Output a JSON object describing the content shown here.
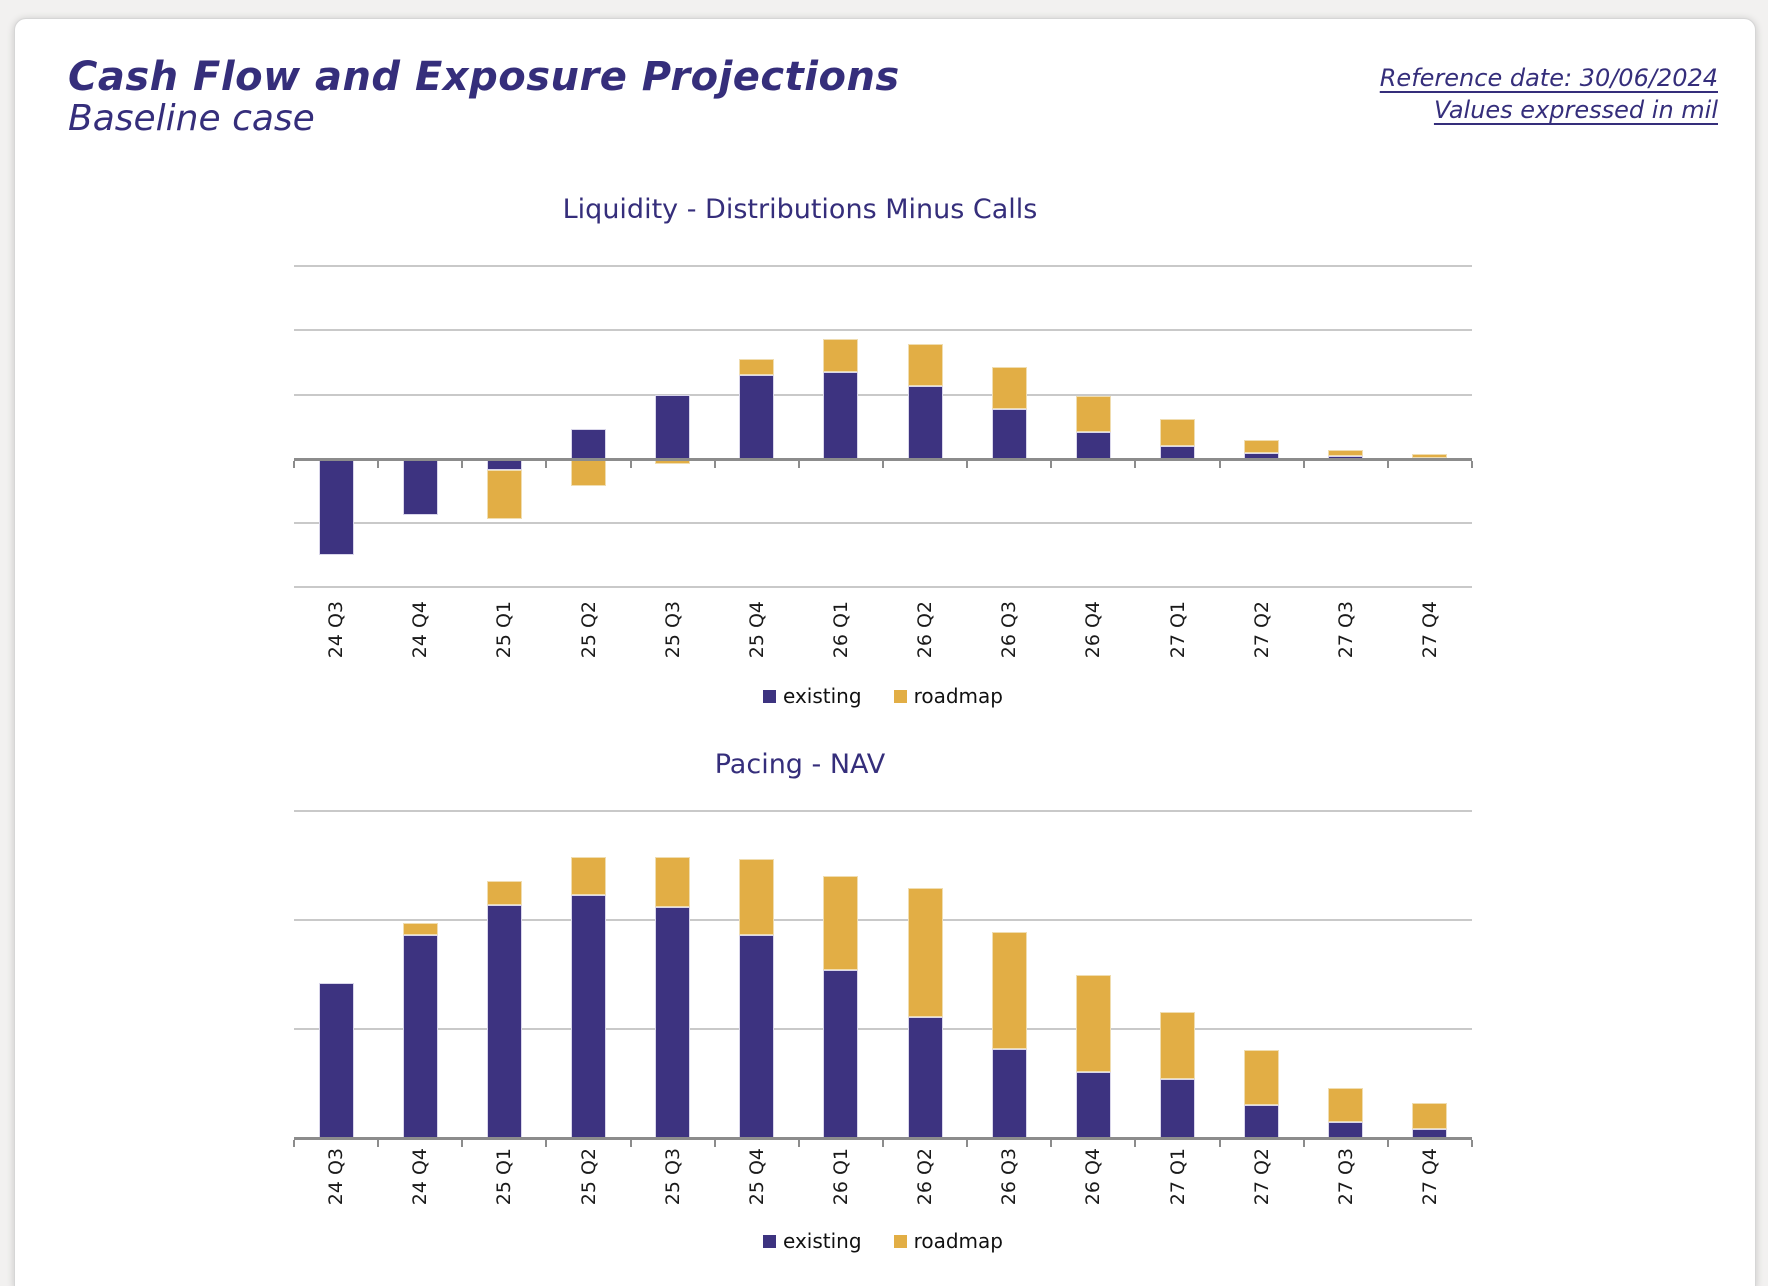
{
  "page": {
    "title": "Cash Flow and Exposure Projections",
    "subtitle": "Baseline case",
    "header_right": {
      "reference_date": "Reference date: 30/06/2024",
      "values_note": "Values expressed in mil"
    }
  },
  "legend": {
    "existing": "existing",
    "roadmap": "roadmap"
  },
  "colors": {
    "accent_text": "#352e7b",
    "existing": "#3d3380",
    "roadmap": "#e2ae45",
    "gridline": "#c9c9c9",
    "axis": "#8c8c8c",
    "label_text": "#1a1a1a"
  },
  "chart_data": [
    {
      "type": "bar",
      "stacked": true,
      "title": "Liquidity - Distributions Minus Calls",
      "categories": [
        "24 Q3",
        "24 Q4",
        "25 Q1",
        "25 Q2",
        "25 Q3",
        "25 Q4",
        "26 Q1",
        "26 Q2",
        "26 Q3",
        "26 Q4",
        "27 Q1",
        "27 Q2",
        "27 Q3",
        "27 Q4"
      ],
      "series": [
        {
          "name": "existing",
          "values": [
            -150,
            -87,
            -18,
            47,
            100,
            131,
            135,
            114,
            77,
            42,
            20,
            9,
            5,
            2
          ]
        },
        {
          "name": "roadmap",
          "values": [
            0,
            0,
            -75,
            -43,
            -8,
            25,
            52,
            64,
            66,
            56,
            42,
            20,
            8,
            5
          ]
        }
      ],
      "xlabel": "",
      "ylabel": "",
      "ylim": [
        -200,
        300
      ],
      "grid_step": 100,
      "y_axis_labels_shown": false,
      "values_unit": "relative grid units (1 gridline interval = 100)",
      "legend_position": "bottom-center"
    },
    {
      "type": "bar",
      "stacked": true,
      "title": "Pacing - NAV",
      "categories": [
        "24 Q3",
        "24 Q4",
        "25 Q1",
        "25 Q2",
        "25 Q3",
        "25 Q4",
        "26 Q1",
        "26 Q2",
        "26 Q3",
        "26 Q4",
        "27 Q1",
        "27 Q2",
        "27 Q3",
        "27 Q4"
      ],
      "series": [
        {
          "name": "existing",
          "values": [
            142,
            186,
            214,
            223,
            212,
            186,
            154,
            111,
            82,
            61,
            54,
            30,
            15,
            8
          ]
        },
        {
          "name": "roadmap",
          "values": [
            0,
            11,
            22,
            35,
            46,
            70,
            86,
            118,
            107,
            89,
            62,
            51,
            31,
            24
          ]
        }
      ],
      "xlabel": "",
      "ylabel": "",
      "ylim": [
        0,
        300
      ],
      "grid_step": 100,
      "y_axis_labels_shown": false,
      "values_unit": "relative grid units (1 gridline interval = 100)",
      "legend_position": "bottom-center"
    }
  ]
}
